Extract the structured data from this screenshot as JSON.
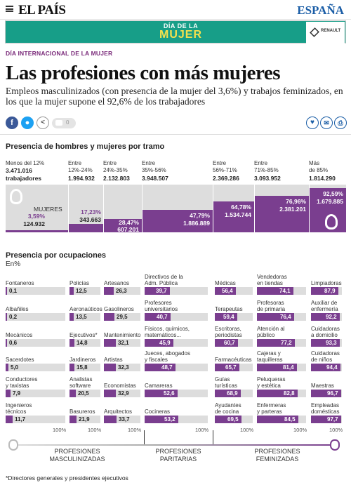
{
  "header": {
    "logo": "EL PAÍS",
    "edition": "ESPAÑA",
    "menu_icon": "hamburger-menu-icon"
  },
  "banner": {
    "line1": "DÍA DE LA",
    "line2": "MUJER",
    "sponsor": "RENAULT"
  },
  "article": {
    "kicker": "DÍA INTERNACIONAL DE LA MUJER",
    "headline": "Las profesiones con más mujeres",
    "subhead": "Empleos masculinizados (con presencia de la mujer del 3,6%) y trabajos feminizados, en los que la mujer supone el 92,6% de los trabajadores"
  },
  "share": {
    "facebook": "f",
    "twitter": "t",
    "comments": "0"
  },
  "tramos": {
    "title": "Presencia de hombres y mujeres por tramo",
    "women_label": "MUJERES",
    "items": [
      {
        "range": "Menos del 12%",
        "workers": "3.471.016",
        "unit": "trabajadores",
        "pct": "3,59%",
        "women": "124.932",
        "share": 0.0359
      },
      {
        "range": "Entre 12%-24%",
        "workers": "1.994.932",
        "pct": "17,23%",
        "women": "343.663",
        "share": 0.1723
      },
      {
        "range": "Entre 24%-35%",
        "workers": "2.132.803",
        "pct": "28,47%",
        "women": "607.201",
        "share": 0.2847
      },
      {
        "range": "Entre 35%-56%",
        "workers": "3.948.507",
        "pct": "47,79%",
        "women": "1.886.889",
        "share": 0.4779
      },
      {
        "range": "Entre 56%-71%",
        "workers": "2.369.286",
        "pct": "64,78%",
        "women": "1.534.744",
        "share": 0.6478
      },
      {
        "range": "Entre 71%-85%",
        "workers": "3.093.952",
        "pct": "76,96%",
        "women": "2.381.201",
        "share": 0.7696
      },
      {
        "range": "Más de 85%",
        "workers": "1.814.290",
        "pct": "92,59%",
        "women": "1.679.885",
        "share": 0.9259
      }
    ]
  },
  "ocupaciones": {
    "title": "Presencia por ocupaciones",
    "subtitle": "En%",
    "hundred": "100%",
    "columns": [
      [
        {
          "name": "Fontaneros",
          "value": "0,1",
          "v": 0.1
        },
        {
          "name": "Albañiles",
          "value": "0,2",
          "v": 0.2
        },
        {
          "name": "Mecánicos",
          "value": "0,6",
          "v": 0.6
        },
        {
          "name": "Sacerdotes",
          "value": "5,0",
          "v": 5.0
        },
        {
          "name": "Conductores\ny taxistas",
          "value": "7,9",
          "v": 7.9
        },
        {
          "name": "Ingenieros\ntécnicos",
          "value": "11,7",
          "v": 11.7
        }
      ],
      [
        {
          "name": "Policías",
          "value": "12,5",
          "v": 12.5
        },
        {
          "name": "Aeronaúticos",
          "value": "13,5",
          "v": 13.5
        },
        {
          "name": "Ejecutivos*",
          "value": "14,8",
          "v": 14.8
        },
        {
          "name": "Jardineros",
          "value": "15,8",
          "v": 15.8
        },
        {
          "name": "Analistas\nsoftware",
          "value": "20,5",
          "v": 20.5
        },
        {
          "name": "Basureros",
          "value": "21,9",
          "v": 21.9
        }
      ],
      [
        {
          "name": "Artesanos",
          "value": "26,3",
          "v": 26.3
        },
        {
          "name": "Gasolineros",
          "value": "29,5",
          "v": 29.5
        },
        {
          "name": "Mantenimiento",
          "value": "32,1",
          "v": 32.1
        },
        {
          "name": "Artistas",
          "value": "32,3",
          "v": 32.3
        },
        {
          "name": "Economistas",
          "value": "32,9",
          "v": 32.9
        },
        {
          "name": "Arquitectos",
          "value": "33,7",
          "v": 33.7
        }
      ],
      [
        {
          "name": "Directivos de la\nAdm. Pública",
          "value": "39,7",
          "v": 39.7
        },
        {
          "name": "Profesores\nuniversitarios",
          "value": "40,7",
          "v": 40.7
        },
        {
          "name": "Físicos, químicos,\nmatemáticos...",
          "value": "45,9",
          "v": 45.9
        },
        {
          "name": "Jueces, abogados\ny fiscales",
          "value": "48,7",
          "v": 48.7
        },
        {
          "name": "Camareras",
          "value": "52,6",
          "v": 52.6
        },
        {
          "name": "Cocineras",
          "value": "53,2",
          "v": 53.2
        }
      ],
      [
        {
          "name": "Médicas",
          "value": "56,4",
          "v": 56.4
        },
        {
          "name": "Terapeutas",
          "value": "59,4",
          "v": 59.4
        },
        {
          "name": "Escritoras,\nperiodistas",
          "value": "60,7",
          "v": 60.7
        },
        {
          "name": "Farmacéuticas",
          "value": "65,7",
          "v": 65.7
        },
        {
          "name": "Guías\nturísticas",
          "value": "68,9",
          "v": 68.9
        },
        {
          "name": "Ayudantes\nde cocina",
          "value": "69,5",
          "v": 69.5
        }
      ],
      [
        {
          "name": "Vendedoras\nen tiendas",
          "value": "74,1",
          "v": 74.1
        },
        {
          "name": "Profesoras\nde primaria",
          "value": "76,4",
          "v": 76.4
        },
        {
          "name": "Atención al\npúblico",
          "value": "77,2",
          "v": 77.2
        },
        {
          "name": "Cajeras y\ntaquilleras",
          "value": "81,4",
          "v": 81.4
        },
        {
          "name": "Peluqueras\ny estética",
          "value": "82,8",
          "v": 82.8
        },
        {
          "name": "Enfermeras\ny parteras",
          "value": "84,5",
          "v": 84.5
        }
      ],
      [
        {
          "name": "Limpiadoras",
          "value": "87,9",
          "v": 87.9
        },
        {
          "name": "Auxiliar de\nenfermería",
          "value": "92,2",
          "v": 92.2
        },
        {
          "name": "Cuidadoras\na domicilio",
          "value": "93,3",
          "v": 93.3
        },
        {
          "name": "Cuidadoras\nde niños",
          "value": "94,4",
          "v": 94.4
        },
        {
          "name": "Maestras",
          "value": "96,7",
          "v": 96.7
        },
        {
          "name": "Empleadas\ndomésticas",
          "value": "97,7",
          "v": 97.7
        }
      ]
    ],
    "groups": {
      "masc": "PROFESIONES\nMASCULINIZADAS",
      "par": "PROFESIONES\nPARITARIAS",
      "fem": "PROFESIONES\nFEMINIZADAS"
    },
    "footnote": "*Directores generales y presidentes ejecutivos"
  },
  "colors": {
    "purple": "#7a3e8f",
    "gray": "#dddddd",
    "banner": "#179e88"
  }
}
